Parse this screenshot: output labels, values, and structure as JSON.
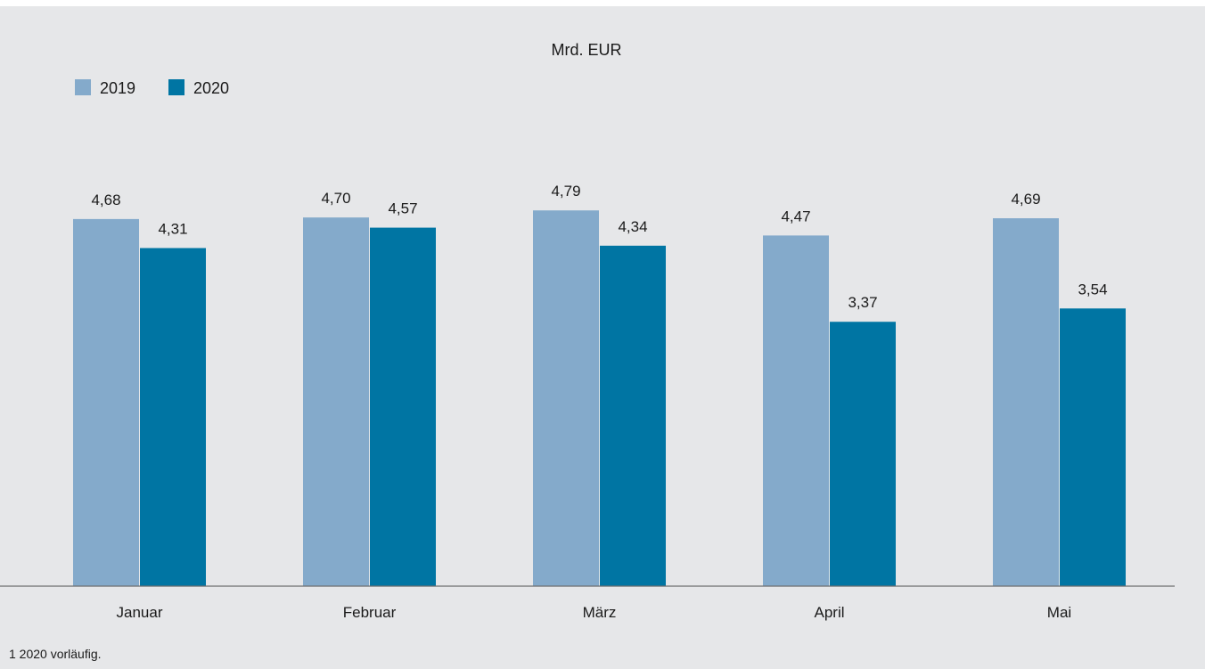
{
  "chart_data": {
    "type": "bar",
    "title": "Mrd. EUR",
    "categories": [
      "Januar",
      "Februar",
      "März",
      "April",
      "Mai"
    ],
    "series": [
      {
        "name": "2019",
        "values": [
          4.68,
          4.7,
          4.79,
          4.47,
          4.69
        ],
        "labels": [
          "4,68",
          "4,70",
          "4,79",
          "4,47",
          "4,69"
        ],
        "color": "#84aacb"
      },
      {
        "name": "2020",
        "values": [
          4.31,
          4.57,
          4.34,
          3.37,
          3.54
        ],
        "labels": [
          "4,31",
          "4,57",
          "4,34",
          "3,37",
          "3,54"
        ],
        "color": "#0075a3"
      }
    ],
    "ylim": [
      0,
      6.7
    ],
    "grid": false,
    "legend_position": "top-left"
  },
  "footnote": "1 2020 vorläufig."
}
